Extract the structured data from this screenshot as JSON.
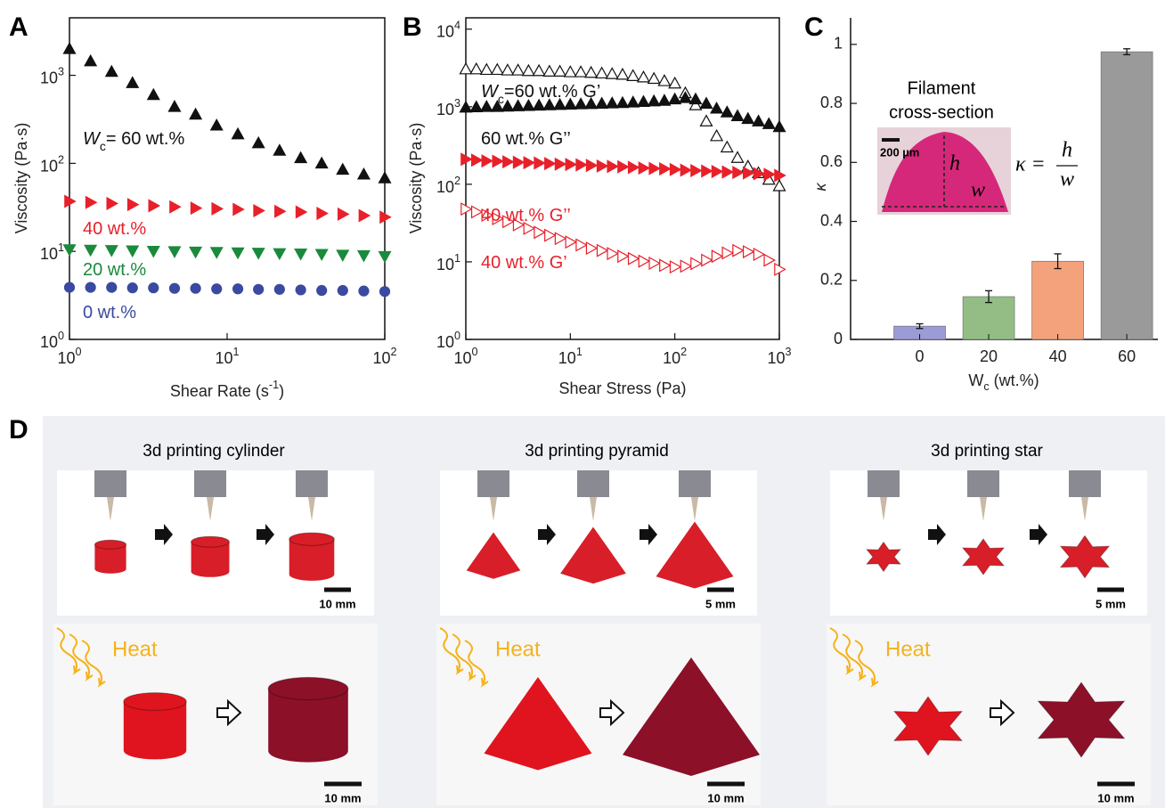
{
  "panel_labels": [
    "A",
    "B",
    "C",
    "D"
  ],
  "chart_data": [
    {
      "type": "scatter",
      "xlog": true,
      "ylog": true,
      "box": true,
      "x_label": [
        {
          "text": "Shear Rate (s",
          "style": "normal"
        },
        {
          "text": "-1",
          "style": "sup"
        },
        {
          "text": ")",
          "style": "normal"
        }
      ],
      "y_label": [
        {
          "text": "Viscosity (Pa·s)",
          "style": "normal"
        }
      ],
      "xlim": [
        1,
        100
      ],
      "ylim": [
        1,
        4500
      ],
      "xticks": [
        {
          "value": 1,
          "label": "10^0"
        },
        {
          "value": 10,
          "label": "10^1"
        },
        {
          "value": 100,
          "label": "10^2"
        }
      ],
      "yticks": [
        {
          "value": 1,
          "label": "10^0"
        },
        {
          "value": 10,
          "label": "10^1"
        },
        {
          "value": 100,
          "label": "10^2"
        },
        {
          "value": 1000,
          "label": "10^3"
        }
      ],
      "x": [
        1,
        1.36,
        1.85,
        2.51,
        3.41,
        4.64,
        6.31,
        8.58,
        11.7,
        15.8,
        21.5,
        29.3,
        39.8,
        54.1,
        73.6,
        100
      ],
      "series": [
        {
          "color": "#111111",
          "marker": "triangle-up",
          "filled": true,
          "values": [
            2000,
            1450,
            1100,
            820,
            600,
            440,
            360,
            270,
            215,
            170,
            140,
            115,
            100,
            85,
            75,
            68
          ]
        },
        {
          "color": "#e8202a",
          "marker": "triangle-right",
          "filled": true,
          "values": [
            37,
            36,
            35,
            34,
            33,
            32,
            31,
            30.5,
            30,
            29,
            28.5,
            28,
            27,
            26.5,
            25.5,
            24.5
          ]
        },
        {
          "color": "#1a8a3c",
          "marker": "triangle-down",
          "filled": true,
          "values": [
            10.5,
            10.4,
            10.3,
            10.2,
            10.1,
            10,
            9.9,
            9.8,
            9.7,
            9.6,
            9.5,
            9.4,
            9.3,
            9.1,
            9,
            8.8
          ]
        },
        {
          "color": "#3a4aa0",
          "marker": "circle",
          "filled": true,
          "values": [
            3.9,
            3.9,
            3.9,
            3.85,
            3.85,
            3.8,
            3.8,
            3.75,
            3.75,
            3.7,
            3.7,
            3.65,
            3.6,
            3.6,
            3.55,
            3.5
          ]
        }
      ],
      "annotations": [
        {
          "color": "#111111",
          "parts": [
            {
              "text": "W",
              "style": "italic"
            },
            {
              "text": "c",
              "style": "sub"
            },
            {
              "text": "= 60 wt.%",
              "style": "normal"
            }
          ]
        },
        {
          "color": "#e8202a",
          "parts": [
            {
              "text": "40 wt.%",
              "style": "normal"
            }
          ]
        },
        {
          "color": "#1a8a3c",
          "parts": [
            {
              "text": "20 wt.%",
              "style": "normal"
            }
          ]
        },
        {
          "color": "#3a4aa0",
          "parts": [
            {
              "text": "0 wt.%",
              "style": "normal"
            }
          ]
        }
      ]
    },
    {
      "type": "scatter",
      "xlog": true,
      "ylog": true,
      "box": true,
      "x_label": [
        {
          "text": "Shear Stress (Pa)",
          "style": "normal"
        }
      ],
      "y_label": [
        {
          "text": "Viscosity (Pa·s)",
          "style": "normal"
        }
      ],
      "xlim": [
        1,
        1000
      ],
      "ylim": [
        1,
        14000
      ],
      "xticks": [
        {
          "value": 1,
          "label": "10^0"
        },
        {
          "value": 10,
          "label": "10^1"
        },
        {
          "value": 100,
          "label": "10^2"
        },
        {
          "value": 1000,
          "label": "10^3"
        }
      ],
      "yticks": [
        {
          "value": 1,
          "label": "10^0"
        },
        {
          "value": 10,
          "label": "10^1"
        },
        {
          "value": 100,
          "label": "10^2"
        },
        {
          "value": 1000,
          "label": "10^3"
        },
        {
          "value": 10000,
          "label": "10^4"
        }
      ],
      "x": [
        1,
        1.26,
        1.58,
        2,
        2.51,
        3.16,
        3.98,
        5.01,
        6.31,
        7.94,
        10,
        12.6,
        15.8,
        20,
        25.1,
        31.6,
        39.8,
        50.1,
        63.1,
        79.4,
        100,
        126,
        158,
        200,
        251,
        316,
        398,
        501,
        631,
        794,
        1000
      ],
      "series": [
        {
          "color": "#111111",
          "marker": "triangle-up",
          "filled": false,
          "values": [
            3050,
            3050,
            3000,
            3000,
            2950,
            2950,
            2900,
            2900,
            2850,
            2850,
            2800,
            2800,
            2750,
            2700,
            2650,
            2600,
            2500,
            2400,
            2300,
            2150,
            2000,
            1500,
            1050,
            650,
            420,
            300,
            220,
            170,
            140,
            115,
            95
          ]
        },
        {
          "color": "#111111",
          "marker": "triangle-up",
          "filled": true,
          "values": [
            980,
            990,
            1000,
            1000,
            1010,
            1020,
            1030,
            1040,
            1050,
            1060,
            1070,
            1080,
            1090,
            1100,
            1110,
            1120,
            1140,
            1160,
            1180,
            1200,
            1250,
            1300,
            1250,
            1100,
            950,
            850,
            760,
            700,
            650,
            600,
            550
          ]
        },
        {
          "color": "#e8202a",
          "marker": "triangle-right",
          "filled": true,
          "values": [
            210,
            205,
            200,
            198,
            195,
            192,
            190,
            188,
            185,
            182,
            180,
            178,
            175,
            172,
            170,
            168,
            165,
            162,
            160,
            158,
            155,
            152,
            150,
            148,
            146,
            144,
            142,
            140,
            137,
            134,
            130
          ]
        },
        {
          "color": "#e8202a",
          "marker": "triangle-right",
          "filled": false,
          "values": [
            48,
            44,
            40,
            36,
            33,
            30,
            27,
            24,
            22,
            20,
            18,
            16.5,
            15,
            14,
            12.8,
            11.8,
            11,
            10.2,
            9.6,
            9,
            8.6,
            8.8,
            9.5,
            10.5,
            11.8,
            13,
            14,
            13.5,
            12.5,
            10.5,
            8
          ]
        }
      ],
      "annotations": [
        {
          "color": "#111111",
          "parts": [
            {
              "text": "W",
              "style": "italic"
            },
            {
              "text": "c",
              "style": "sub"
            },
            {
              "text": "=60 wt.% G’",
              "style": "normal"
            }
          ]
        },
        {
          "color": "#111111",
          "parts": [
            {
              "text": "60 wt.% G’’",
              "style": "normal"
            }
          ]
        },
        {
          "color": "#e8202a",
          "parts": [
            {
              "text": "40 wt.% G’’",
              "style": "normal"
            }
          ]
        },
        {
          "color": "#e8202a",
          "parts": [
            {
              "text": "40 wt.% G’",
              "style": "normal"
            }
          ]
        }
      ]
    },
    {
      "type": "bar",
      "box": false,
      "x_label": [
        {
          "text": "W",
          "style": "normal"
        },
        {
          "text": "c",
          "style": "sub"
        },
        {
          "text": " (wt.%)",
          "style": "normal"
        }
      ],
      "y_label": [
        {
          "text": "κ",
          "style": "italic"
        }
      ],
      "categories": [
        "0",
        "20",
        "40",
        "60"
      ],
      "values": [
        0.045,
        0.145,
        0.265,
        0.975
      ],
      "errors": [
        0.008,
        0.02,
        0.025,
        0.01
      ],
      "colors": [
        "#9b9bd6",
        "#93bd84",
        "#f4a27c",
        "#9a9a9a"
      ],
      "ylim": [
        0,
        1.09
      ],
      "yticks": [
        0,
        0.2,
        0.4,
        0.6,
        0.8,
        1
      ],
      "inset": {
        "title_lines": [
          "Filament",
          "cross-section"
        ],
        "scale_bar": "200 µm",
        "h_label": "h",
        "w_label": "w",
        "formula": {
          "lhs": "κ =",
          "numerator": "h",
          "denominator": "w"
        }
      }
    }
  ],
  "panel_d": {
    "sequences": [
      {
        "shape": "cylinder",
        "title": "3d printing cylinder",
        "scale_top": "10 mm",
        "heat": "Heat",
        "scale_bottom": "10 mm"
      },
      {
        "shape": "pyramid",
        "title": "3d printing pyramid",
        "scale_top": "5 mm",
        "heat": "Heat",
        "scale_bottom": "10 mm"
      },
      {
        "shape": "star",
        "title": "3d printing star",
        "scale_top": "5 mm",
        "heat": "Heat",
        "scale_bottom": "10 mm"
      }
    ]
  }
}
